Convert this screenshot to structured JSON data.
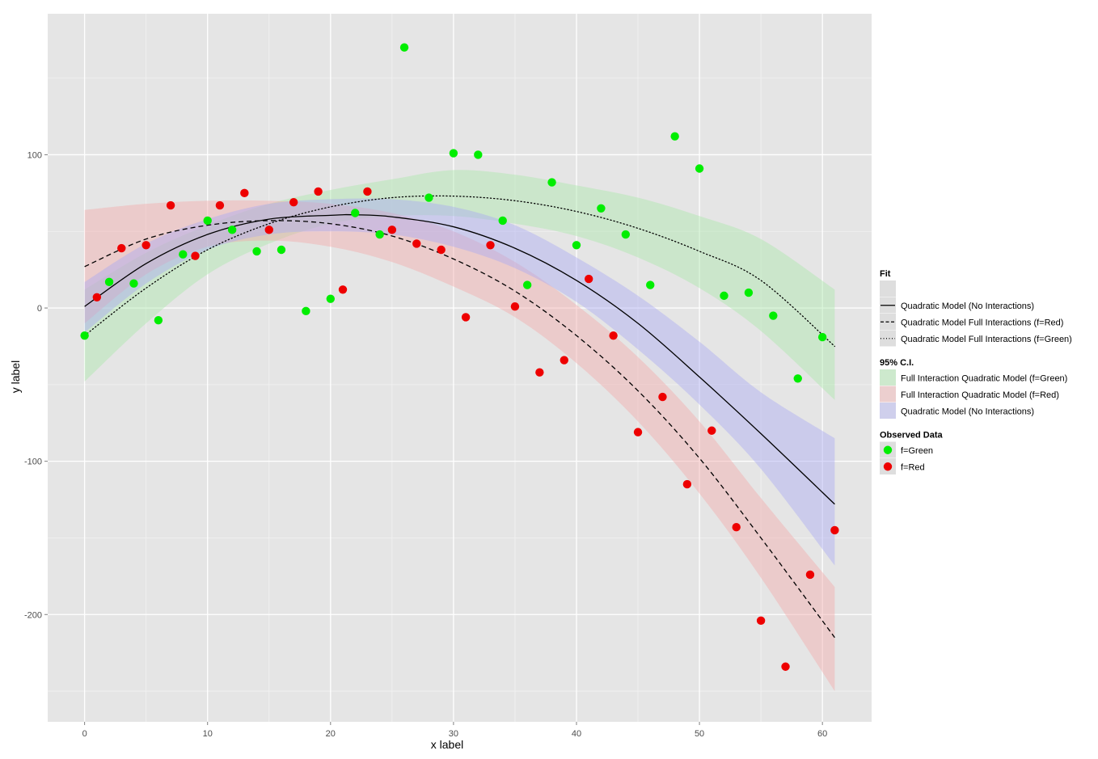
{
  "chart_data": {
    "type": "scatter",
    "title": "",
    "xlabel": "x label",
    "ylabel": "y label",
    "xlim": [
      -3,
      64
    ],
    "ylim": [
      -270,
      192
    ],
    "grid": true,
    "xticks": [
      0,
      10,
      20,
      30,
      40,
      50,
      60
    ],
    "yticks": [
      -200,
      -100,
      0,
      100
    ],
    "xtick_labels": [
      "0",
      "10",
      "20",
      "30",
      "40",
      "50",
      "60"
    ],
    "ytick_labels": [
      "-200",
      "-100",
      "0",
      "100"
    ],
    "colors": {
      "panel_background": "#e5e5e5",
      "grid_major": "#ffffff",
      "grid_minor": "#f2f2f2",
      "green_points": "#00ee00",
      "red_points": "#ee0000",
      "ci_green": "#a6e8a6",
      "ci_red": "#f2a6a6",
      "ci_blue": "#a6a6f2",
      "fit_line": "#000000"
    },
    "series": [
      {
        "name": "f=Green",
        "kind": "points",
        "color": "#00ee00",
        "x": [
          0,
          2,
          4,
          6,
          8,
          10,
          12,
          14,
          16,
          18,
          20,
          22,
          24,
          26,
          28,
          30,
          32,
          34,
          36,
          38,
          40,
          42,
          44,
          46,
          48,
          50,
          52,
          54,
          56,
          58,
          60
        ],
        "y": [
          -18,
          17,
          16,
          -8,
          35,
          57,
          51,
          37,
          38,
          -2,
          6,
          62,
          48,
          170,
          72,
          101,
          100,
          57,
          15,
          82,
          41,
          65,
          48,
          15,
          112,
          91,
          8,
          10,
          -5,
          -46,
          -19
        ]
      },
      {
        "name": "f=Red",
        "kind": "points",
        "color": "#ee0000",
        "x": [
          1,
          3,
          5,
          7,
          9,
          11,
          13,
          15,
          17,
          19,
          21,
          23,
          25,
          27,
          29,
          31,
          33,
          35,
          37,
          39,
          41,
          43,
          45,
          47,
          49,
          51,
          53,
          55,
          57,
          59,
          61
        ],
        "y": [
          7,
          39,
          41,
          67,
          34,
          67,
          75,
          51,
          69,
          76,
          12,
          76,
          51,
          42,
          38,
          -6,
          41,
          1,
          -42,
          -34,
          19,
          -18,
          -81,
          -58,
          -115,
          -80,
          -143,
          -204,
          -234,
          -174,
          -145
        ]
      },
      {
        "name": "Quadratic Model (No Interactions)",
        "kind": "line",
        "linestyle": "solid",
        "x": [
          0,
          5,
          10,
          15,
          20,
          22,
          25,
          30,
          35,
          40,
          45,
          50,
          55,
          61
        ],
        "y": [
          1,
          29,
          48,
          58,
          60.5,
          60.8,
          59.5,
          53,
          39,
          18,
          -10,
          -45,
          -82,
          -128
        ]
      },
      {
        "name": "Quadratic Model Full Interactions (f=Red)",
        "kind": "line",
        "linestyle": "dashed",
        "x": [
          0,
          5,
          10,
          15,
          20,
          25,
          30,
          35,
          40,
          45,
          50,
          55,
          61
        ],
        "y": [
          27,
          45,
          54,
          57,
          55,
          47,
          32,
          11,
          -18,
          -54,
          -98,
          -150,
          -215
        ]
      },
      {
        "name": "Quadratic Model Full Interactions (f=Green)",
        "kind": "line",
        "linestyle": "dotted",
        "x": [
          0,
          5,
          10,
          15,
          20,
          25,
          30,
          35,
          40,
          45,
          50,
          55,
          61
        ],
        "y": [
          -18,
          13,
          38,
          55,
          66,
          72,
          73,
          70,
          63,
          52,
          37,
          18,
          -25
        ]
      },
      {
        "name": "Full Interaction Quadratic Model (f=Green)",
        "kind": "band",
        "color": "#a6e8a6",
        "x": [
          0,
          5,
          10,
          15,
          20,
          25,
          30,
          35,
          40,
          45,
          50,
          55,
          61
        ],
        "lower": [
          -48,
          -10,
          22,
          42,
          55,
          60,
          60,
          55,
          47,
          33,
          13,
          -15,
          -60
        ],
        "upper": [
          12,
          36,
          54,
          68,
          77,
          84,
          90,
          87,
          80,
          72,
          60,
          45,
          12
        ]
      },
      {
        "name": "Full Interaction Quadratic Model (f=Red)",
        "kind": "band",
        "color": "#f2a6a6",
        "x": [
          0,
          5,
          10,
          15,
          20,
          25,
          30,
          35,
          40,
          45,
          50,
          55,
          61
        ],
        "lower": [
          -10,
          22,
          40,
          44,
          40,
          30,
          14,
          -6,
          -36,
          -74,
          -121,
          -176,
          -250
        ],
        "upper": [
          64,
          68,
          70,
          70,
          68,
          62,
          50,
          30,
          2,
          -32,
          -74,
          -124,
          -182
        ]
      },
      {
        "name": "Quadratic Model (No Interactions)",
        "kind": "band",
        "color": "#a6a6f2",
        "x": [
          0,
          5,
          10,
          15,
          20,
          25,
          30,
          35,
          40,
          45,
          50,
          55,
          61
        ],
        "lower": [
          -16,
          16,
          38,
          48,
          50,
          48,
          40,
          26,
          4,
          -27,
          -63,
          -105,
          -168
        ],
        "upper": [
          17,
          42,
          58,
          68,
          71,
          71,
          66,
          54,
          33,
          8,
          -22,
          -55,
          -85
        ]
      }
    ],
    "legend": {
      "placement": "right",
      "groups": [
        {
          "title": "Fit",
          "items": [
            {
              "label": "",
              "kind": "blank"
            },
            {
              "label": "Quadratic Model (No Interactions)",
              "kind": "line",
              "linestyle": "solid"
            },
            {
              "label": "Quadratic Model Full Interactions (f=Red)",
              "kind": "line",
              "linestyle": "dashed"
            },
            {
              "label": "Quadratic Model Full Interactions (f=Green)",
              "kind": "line",
              "linestyle": "dotted"
            }
          ]
        },
        {
          "title": "95% C.I.",
          "items": [
            {
              "label": "Full Interaction Quadratic Model (f=Green)",
              "kind": "fill",
              "color": "#cde9cd"
            },
            {
              "label": "Full Interaction Quadratic Model (f=Red)",
              "kind": "fill",
              "color": "#eccfcf"
            },
            {
              "label": "Quadratic Model (No Interactions)",
              "kind": "fill",
              "color": "#cfcfec"
            }
          ]
        },
        {
          "title": "Observed Data",
          "items": [
            {
              "label": "f=Green",
              "kind": "point",
              "color": "#00ee00"
            },
            {
              "label": "f=Red",
              "kind": "point",
              "color": "#ee0000"
            }
          ]
        }
      ]
    }
  }
}
